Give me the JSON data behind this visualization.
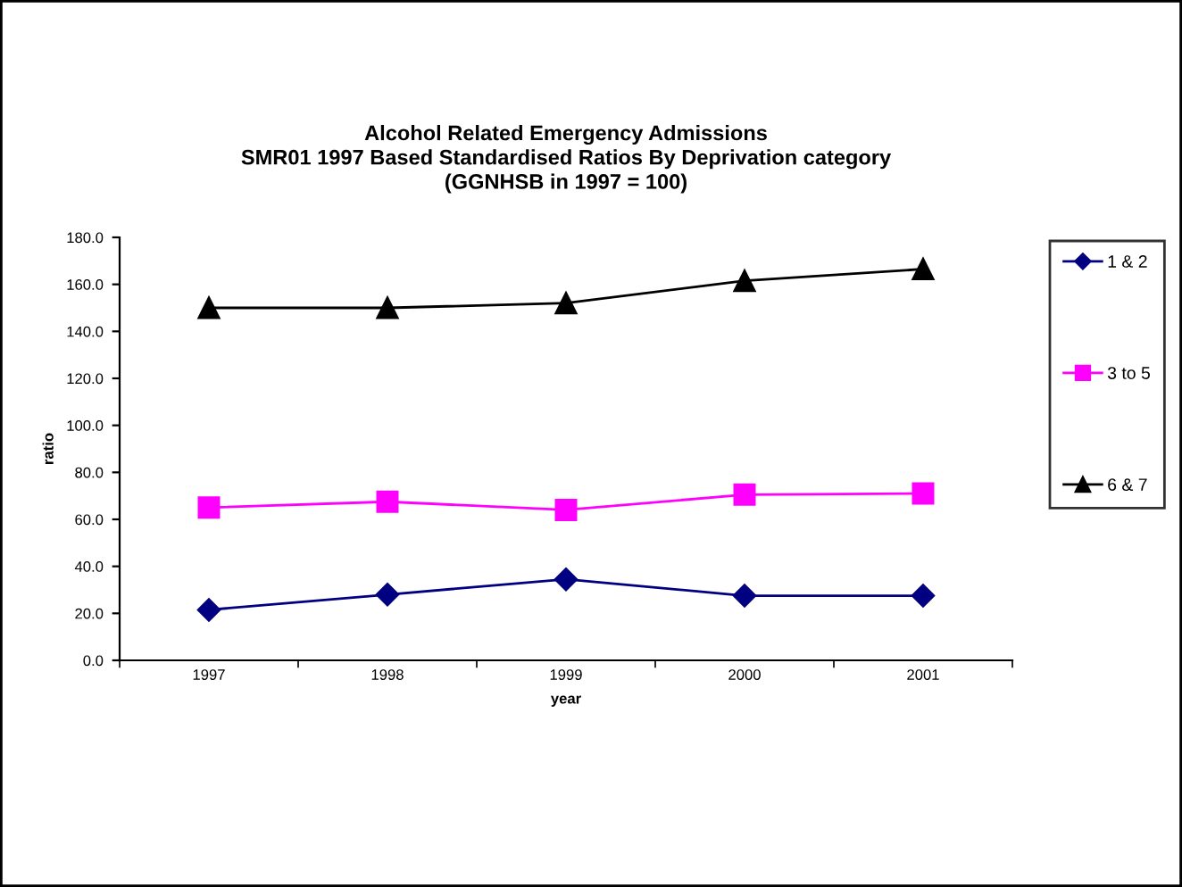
{
  "chart_data": {
    "type": "line",
    "title": "Alcohol Related Emergency Admissions\nSMR01 1997 Based Standardised Ratios By Deprivation category\n(GGNHSB in 1997 = 100)",
    "xlabel": "year",
    "ylabel": "ratio",
    "categories": [
      "1997",
      "1998",
      "1999",
      "2000",
      "2001"
    ],
    "series": [
      {
        "name": "1 & 2",
        "color": "#000080",
        "marker": "diamond",
        "values": [
          21.5,
          28,
          34.5,
          27.5,
          27.5
        ]
      },
      {
        "name": "3 to 5",
        "color": "#ff00ff",
        "marker": "square",
        "values": [
          65,
          67.5,
          64,
          70.5,
          71
        ]
      },
      {
        "name": "6 & 7",
        "color": "#000000",
        "marker": "triangle",
        "values": [
          150,
          150,
          152,
          161.5,
          166.5
        ]
      }
    ],
    "ylim": [
      0,
      180
    ],
    "yticks": [
      {
        "value": 0,
        "label": "0.0"
      },
      {
        "value": 20,
        "label": "20.0"
      },
      {
        "value": 40,
        "label": "40.0"
      },
      {
        "value": 60,
        "label": "60.0"
      },
      {
        "value": 80,
        "label": "80.0"
      },
      {
        "value": 100,
        "label": "100.0"
      },
      {
        "value": 120,
        "label": "120.0"
      },
      {
        "value": 140,
        "label": "140.0"
      },
      {
        "value": 160,
        "label": "160.0"
      },
      {
        "value": 180,
        "label": "180.0"
      }
    ],
    "grid": false,
    "legend": "right",
    "line_style": "solid"
  }
}
